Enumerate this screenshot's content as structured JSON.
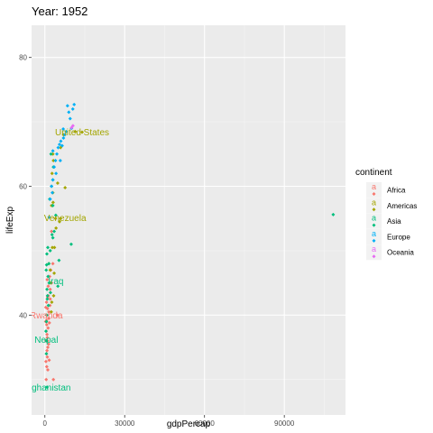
{
  "chart_data": {
    "type": "scatter",
    "title": "Year: 1952",
    "xlabel": "gdpPercap",
    "ylabel": "lifeExp",
    "xlim": [
      -5000,
      113000
    ],
    "ylim": [
      24.5,
      85
    ],
    "xticks": [
      0,
      30000,
      60000,
      90000
    ],
    "xtick_labels": [
      "0",
      "30000",
      "60000",
      "90000"
    ],
    "yticks": [
      40,
      60,
      80
    ],
    "ytick_labels": [
      "40",
      "60",
      "80"
    ],
    "grid": true,
    "background": "#ebebeb",
    "legend": {
      "title": "continent",
      "placement": "right",
      "entries": [
        {
          "label": "Africa",
          "color": "#F8766D"
        },
        {
          "label": "Americas",
          "color": "#A3A500"
        },
        {
          "label": "Asia",
          "color": "#00BF7D"
        },
        {
          "label": "Europe",
          "color": "#00B0F6"
        },
        {
          "label": "Oceania",
          "color": "#E76BF3"
        }
      ]
    },
    "series": [
      {
        "name": "Africa",
        "color": "#F8766D",
        "points": [
          [
            500,
            30.0
          ],
          [
            700,
            32.0
          ],
          [
            900,
            33.5
          ],
          [
            600,
            34.0
          ],
          [
            1100,
            35.0
          ],
          [
            400,
            36.0
          ],
          [
            800,
            37.0
          ],
          [
            1200,
            38.0
          ],
          [
            300,
            39.0
          ],
          [
            700,
            40.0
          ],
          [
            1500,
            40.5
          ],
          [
            1000,
            41.0
          ],
          [
            600,
            42.0
          ],
          [
            2000,
            42.5
          ],
          [
            1300,
            43.0
          ],
          [
            900,
            36.5
          ],
          [
            700,
            38.5
          ],
          [
            1500,
            39.5
          ],
          [
            4700,
            40.0
          ],
          [
            2500,
            45.0
          ],
          [
            2000,
            44.0
          ],
          [
            3000,
            48.0
          ],
          [
            2500,
            53.0
          ],
          [
            1800,
            46.0
          ],
          [
            1100,
            31.5
          ],
          [
            3200,
            30.0
          ],
          [
            800,
            34.5
          ],
          [
            500,
            37.5
          ],
          [
            1400,
            35.5
          ],
          [
            1900,
            41.5
          ],
          [
            400,
            32.8
          ],
          [
            1000,
            36.0
          ],
          [
            600,
            39.2
          ],
          [
            1700,
            38.8
          ],
          [
            1250,
            44.5
          ],
          [
            2200,
            47.0
          ],
          [
            350,
            41.2
          ],
          [
            1600,
            33.0
          ],
          [
            1050,
            42.8
          ],
          [
            850,
            45.5
          ]
        ]
      },
      {
        "name": "Americas",
        "color": "#A3A500",
        "points": [
          [
            3300,
            43.0
          ],
          [
            2600,
            42.0
          ],
          [
            2200,
            45.0
          ],
          [
            2800,
            50.5
          ],
          [
            3600,
            50.5
          ],
          [
            4000,
            55.0
          ],
          [
            5900,
            55.0
          ],
          [
            5500,
            54.5
          ],
          [
            2500,
            57.0
          ],
          [
            3000,
            59.0
          ],
          [
            4800,
            60.5
          ],
          [
            2700,
            62.0
          ],
          [
            3200,
            64.0
          ],
          [
            3000,
            65.0
          ],
          [
            5900,
            66.0
          ],
          [
            7000,
            68.0
          ],
          [
            11400,
            68.5
          ],
          [
            13990,
            68.4
          ],
          [
            2000,
            47.0
          ],
          [
            2400,
            40.5
          ],
          [
            1500,
            48.0
          ],
          [
            3100,
            57.5
          ],
          [
            4200,
            53.5
          ],
          [
            3500,
            46.5
          ],
          [
            7600,
            59.8
          ]
        ]
      },
      {
        "name": "Asia",
        "color": "#00BF7D",
        "points": [
          [
            779,
            28.8
          ],
          [
            600,
            36.0
          ],
          [
            400,
            37.5
          ],
          [
            700,
            40.0
          ],
          [
            1000,
            43.0
          ],
          [
            1200,
            46.0
          ],
          [
            600,
            39.0
          ],
          [
            800,
            44.0
          ],
          [
            500,
            47.0
          ],
          [
            1500,
            48.0
          ],
          [
            2000,
            50.0
          ],
          [
            1100,
            50.5
          ],
          [
            3000,
            52.0
          ],
          [
            3500,
            53.0
          ],
          [
            4100,
            55.5
          ],
          [
            3000,
            57.0
          ],
          [
            1800,
            58.0
          ],
          [
            2500,
            60.0
          ],
          [
            3000,
            61.0
          ],
          [
            3200,
            63.0
          ],
          [
            1600,
            45.0
          ],
          [
            4900,
            44.5
          ],
          [
            9900,
            51.0
          ],
          [
            2300,
            65.0
          ],
          [
            108382,
            55.6
          ],
          [
            900,
            42.5
          ],
          [
            750,
            49.5
          ],
          [
            650,
            47.8
          ],
          [
            1300,
            41.5
          ],
          [
            550,
            34.0
          ],
          [
            2100,
            43.5
          ],
          [
            5300,
            48.5
          ],
          [
            2700,
            52.5
          ]
        ]
      },
      {
        "name": "Europe",
        "color": "#00B0F6",
        "points": [
          [
            1600,
            55.2
          ],
          [
            2000,
            58.0
          ],
          [
            2500,
            60.0
          ],
          [
            3000,
            61.0
          ],
          [
            3500,
            63.0
          ],
          [
            4000,
            64.0
          ],
          [
            4500,
            65.0
          ],
          [
            5000,
            66.0
          ],
          [
            5500,
            66.5
          ],
          [
            6000,
            67.0
          ],
          [
            7000,
            67.5
          ],
          [
            7500,
            68.0
          ],
          [
            8000,
            68.5
          ],
          [
            10000,
            69.0
          ],
          [
            10500,
            72.0
          ],
          [
            8500,
            72.5
          ],
          [
            9000,
            71.5
          ],
          [
            11000,
            72.7
          ],
          [
            3000,
            65.5
          ],
          [
            5800,
            64.0
          ],
          [
            6500,
            66.3
          ],
          [
            9500,
            70.5
          ],
          [
            2800,
            59.0
          ],
          [
            4200,
            62.0
          ],
          [
            6900,
            68.9
          ]
        ]
      },
      {
        "name": "Oceania",
        "color": "#E76BF3",
        "points": [
          [
            10040,
            69.1
          ],
          [
            10556,
            69.4
          ]
        ]
      }
    ],
    "annotations": [
      {
        "text": "United States",
        "x": 13990,
        "y": 68.4,
        "color": "#A3A500"
      },
      {
        "text": "Venezuela",
        "x": 7600,
        "y": 55.1,
        "color": "#A3A500"
      },
      {
        "text": "Iraq",
        "x": 4100,
        "y": 45.3,
        "color": "#00BF7D"
      },
      {
        "text": "Rwanda",
        "x": 493,
        "y": 40.0,
        "color": "#F8766D"
      },
      {
        "text": "Nepal",
        "x": 545,
        "y": 36.2,
        "color": "#00BF7D"
      },
      {
        "text": "Afghanistan",
        "x": 779,
        "y": 28.8,
        "color": "#00BF7D"
      }
    ]
  }
}
